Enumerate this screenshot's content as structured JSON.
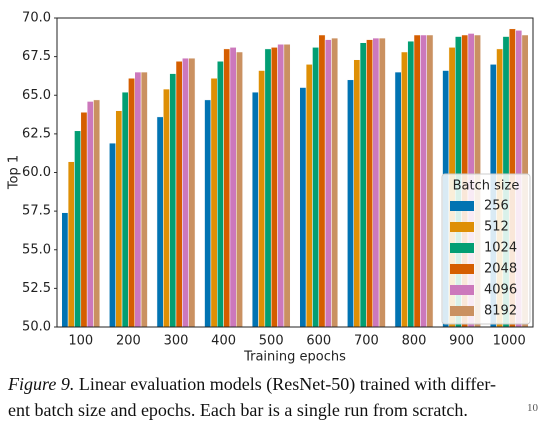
{
  "chart_data": {
    "type": "bar",
    "x_label": "Training epochs",
    "y_label": "Top 1",
    "categories": [
      "100",
      "200",
      "300",
      "400",
      "500",
      "600",
      "700",
      "800",
      "900",
      "1000"
    ],
    "legend_title": "Batch size",
    "legend": "lower right",
    "series": [
      {
        "name": "256",
        "color": "#0173b2",
        "values": [
          57.4,
          61.9,
          63.6,
          64.7,
          65.2,
          65.5,
          66.0,
          66.5,
          66.6,
          67.0
        ]
      },
      {
        "name": "512",
        "color": "#de8f05",
        "values": [
          60.7,
          64.0,
          65.4,
          66.1,
          66.6,
          67.0,
          67.3,
          67.8,
          68.1,
          68.0
        ]
      },
      {
        "name": "1024",
        "color": "#029e73",
        "values": [
          62.7,
          65.2,
          66.4,
          67.2,
          68.0,
          68.1,
          68.4,
          68.5,
          68.8,
          68.8
        ]
      },
      {
        "name": "2048",
        "color": "#d55e00",
        "values": [
          63.9,
          66.1,
          67.2,
          68.0,
          68.1,
          68.9,
          68.6,
          68.9,
          68.9,
          69.3
        ]
      },
      {
        "name": "4096",
        "color": "#cc78bc",
        "values": [
          64.6,
          66.5,
          67.4,
          68.1,
          68.3,
          68.6,
          68.7,
          68.9,
          69.0,
          69.2
        ]
      },
      {
        "name": "8192",
        "color": "#ca9161",
        "values": [
          64.7,
          66.5,
          67.4,
          67.8,
          68.3,
          68.7,
          68.7,
          68.9,
          68.9,
          68.9
        ]
      }
    ],
    "ylim": [
      50,
      70
    ],
    "yticks": [
      {
        "value": 50,
        "label": "50.0"
      },
      52.5,
      {
        "value": 55,
        "label": "55.0"
      },
      57.5,
      {
        "value": 60,
        "label": "60.0"
      },
      62.5,
      {
        "value": 65,
        "label": "65.0"
      },
      67.5,
      {
        "value": 70,
        "label": "70.0"
      }
    ]
  },
  "caption": {
    "label": "Figure 9.",
    "lines": [
      "Linear evaluation models (ResNet-50) trained with differ-",
      "ent batch size and epochs. Each bar is a single run from scratch."
    ]
  },
  "page_number": "10"
}
